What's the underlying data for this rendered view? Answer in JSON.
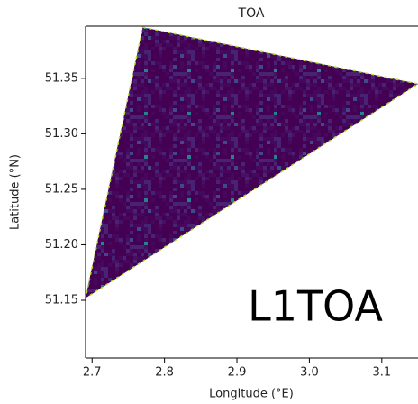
{
  "chart_data": {
    "type": "footprint",
    "title": "TOA",
    "xlabel": "Longitude (°E)",
    "ylabel": "Latitude (°N)",
    "annotation": "L1TOA",
    "x": [
      2.77,
      3.15,
      2.691
    ],
    "y": [
      51.396,
      51.345,
      51.152
    ],
    "color": "#3b1f6e",
    "xlim": [
      2.691,
      3.15
    ],
    "ylim": [
      51.098,
      51.397
    ],
    "xticks": [
      2.7,
      2.8,
      2.9,
      {
        "value": 3.0,
        "label": "3.0"
      },
      3.1
    ],
    "yticks": [
      51.15,
      {
        "value": 51.2,
        "label": "51.20"
      },
      51.25,
      {
        "value": 51.3,
        "label": "51.30"
      },
      51.35
    ]
  }
}
